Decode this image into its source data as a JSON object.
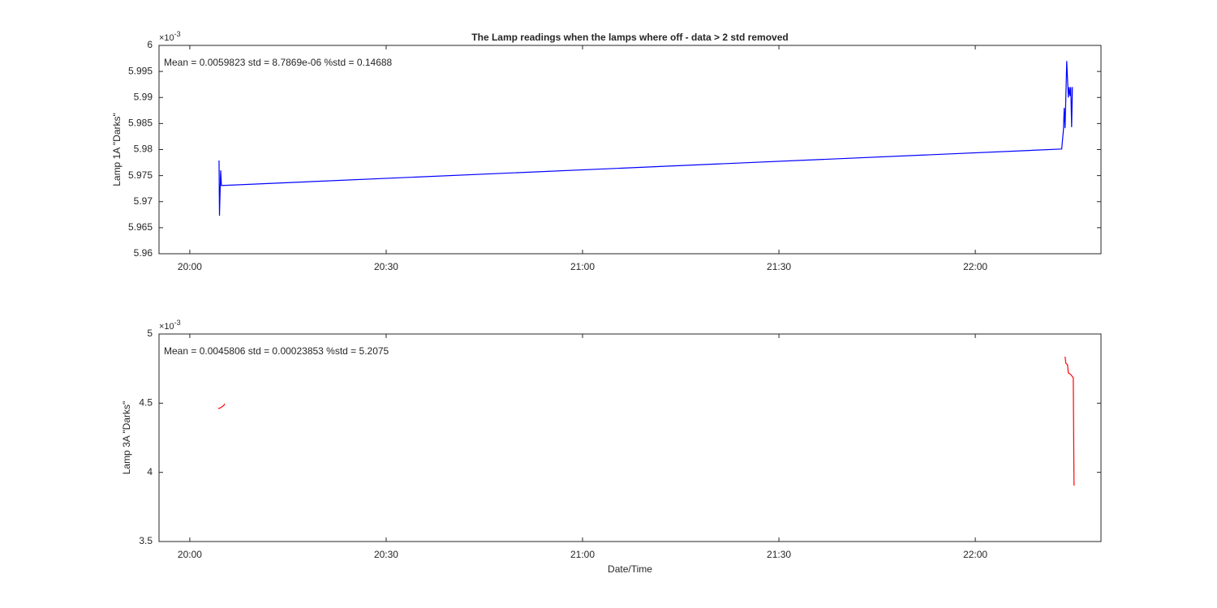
{
  "chart_data": [
    {
      "type": "line",
      "title": "The Lamp readings when the lamps where off - data > 2 std removed",
      "ylabel": "Lamp 1A \"Darks\"",
      "annotation": "Mean = 0.0059823  std = 8.7869e-06  %std = 0.14688",
      "multiplier": {
        "base": "×10",
        "power": "-3"
      },
      "xlim": [
        "19:55:18",
        "22:19:12"
      ],
      "xticks": [
        {
          "value": "20:00:00",
          "label": "20:00"
        },
        {
          "value": "20:30:00",
          "label": "20:30"
        },
        {
          "value": "21:00:00",
          "label": "21:00"
        },
        {
          "value": "21:30:00",
          "label": "21:30"
        },
        {
          "value": "22:00:00",
          "label": "22:00"
        }
      ],
      "ylim": [
        5.96,
        6
      ],
      "yticks": [
        5.96,
        5.965,
        5.97,
        5.975,
        5.98,
        5.985,
        5.99,
        5.995,
        6
      ],
      "series": [
        {
          "color": "#0000ff",
          "x": [
            "20:04:28",
            "20:04:32",
            "20:04:43",
            "20:04:50",
            "22:13:12",
            "22:13:28",
            "22:13:35",
            "22:13:43",
            "22:13:58",
            "22:14:13",
            "22:14:20",
            "22:14:28",
            "22:14:35",
            "22:14:43",
            "22:14:50"
          ],
          "values": [
            5.9779,
            5.9673,
            5.976,
            5.9731,
            5.9801,
            5.9838,
            5.988,
            5.9841,
            5.997,
            5.99,
            5.992,
            5.9903,
            5.992,
            5.9843,
            5.992
          ]
        }
      ]
    },
    {
      "type": "line",
      "ylabel": "Lamp 3A \"Darks\"",
      "xlabel": "Date/Time",
      "annotation": "Mean = 0.0045806  std = 0.00023853  %std = 5.2075",
      "multiplier": {
        "base": "×10",
        "power": "-3"
      },
      "xlim": [
        "19:55:18",
        "22:19:12"
      ],
      "xticks": [
        {
          "value": "20:00:00",
          "label": "20:00"
        },
        {
          "value": "20:30:00",
          "label": "20:30"
        },
        {
          "value": "21:00:00",
          "label": "21:00"
        },
        {
          "value": "21:30:00",
          "label": "21:30"
        },
        {
          "value": "22:00:00",
          "label": "22:00"
        }
      ],
      "ylim": [
        3.5,
        5
      ],
      "yticks": [
        3.5,
        4,
        4.5,
        5
      ],
      "series": [
        {
          "color": "#ff0000",
          "x": [
            "20:04:20",
            "20:04:43",
            "20:05:12",
            "20:05:20",
            null,
            "22:13:43",
            "22:13:50",
            "22:14:05",
            "22:14:13",
            "22:14:35",
            "22:14:58",
            "22:15:05"
          ],
          "values": [
            4.461,
            4.467,
            4.484,
            4.496,
            null,
            4.836,
            4.789,
            4.777,
            4.719,
            4.707,
            4.684,
            3.904
          ]
        }
      ]
    }
  ]
}
